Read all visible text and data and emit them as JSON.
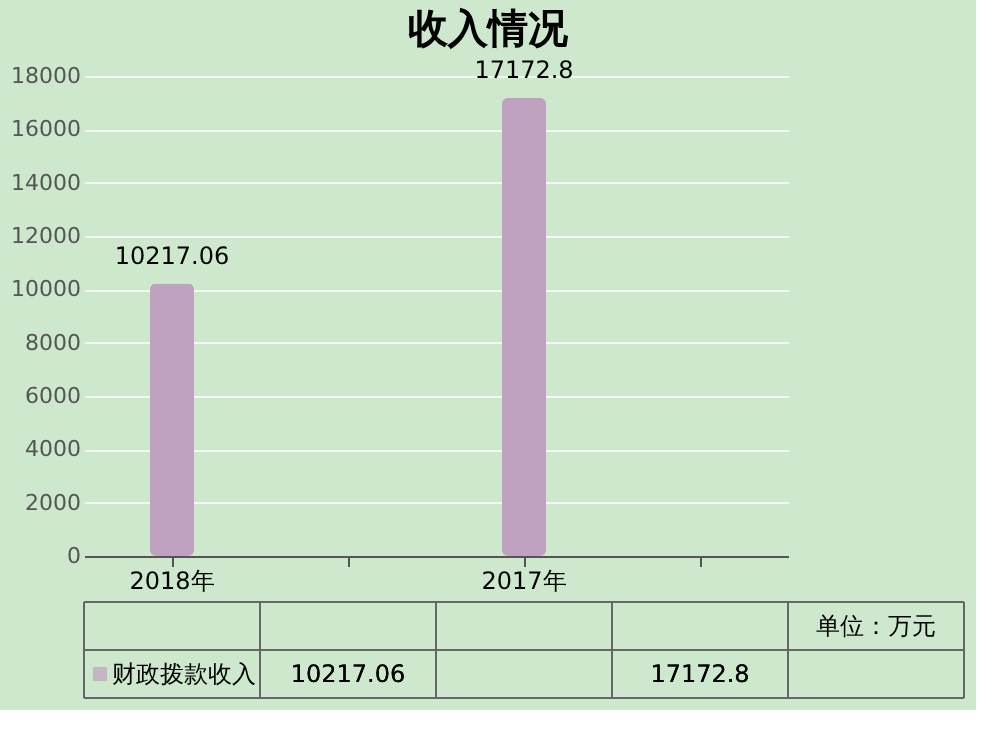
{
  "chart_data": {
    "type": "bar",
    "title": "收入情况",
    "categories": [
      "2018年",
      null,
      "2017年",
      null
    ],
    "series": [
      {
        "name": "财政拨款收入",
        "color": "#c0a2c0",
        "values": [
          10217.06,
          null,
          17172.8,
          null
        ],
        "value_labels": [
          "10217.06",
          null,
          "17172.8",
          null
        ]
      }
    ],
    "ylim": [
      0,
      18000
    ],
    "yticks": [
      0,
      2000,
      4000,
      6000,
      8000,
      10000,
      12000,
      14000,
      16000,
      18000
    ],
    "grid": "y",
    "legend": "bottom",
    "data_labels": true,
    "annotations": [
      "单位：万元"
    ]
  }
}
